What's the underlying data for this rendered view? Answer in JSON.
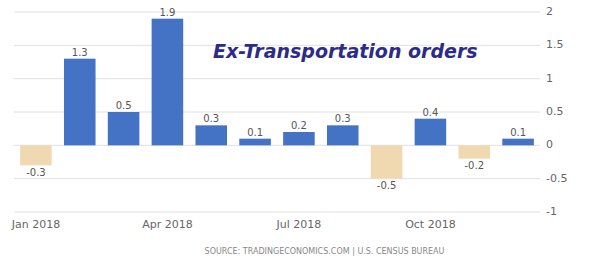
{
  "chart_data": {
    "type": "bar",
    "title": "Ex-Transportation orders",
    "categories": [
      "Jan 2018",
      null,
      null,
      "Apr 2018",
      null,
      null,
      "Jul 2018",
      null,
      null,
      "Oct 2018",
      null,
      null
    ],
    "values": [
      -0.3,
      1.3,
      0.5,
      1.9,
      0.3,
      0.1,
      0.2,
      0.3,
      -0.5,
      0.4,
      -0.2,
      0.1
    ],
    "colors": [
      "#f0d9b0",
      "#4472c4",
      "#4472c4",
      "#4472c4",
      "#4472c4",
      "#4472c4",
      "#4472c4",
      "#4472c4",
      "#f0d9b0",
      "#4472c4",
      "#f0d9b0",
      "#4472c4"
    ],
    "ylim": [
      -1,
      2
    ],
    "yticks": [
      -1,
      -0.5,
      0,
      0.5,
      1,
      1.5,
      2
    ],
    "grid": true,
    "data_labels": true,
    "annotations": [
      "SOURCE: TRADINGECONOMICS.COM | U.S. CENSUS BUREAU"
    ]
  }
}
